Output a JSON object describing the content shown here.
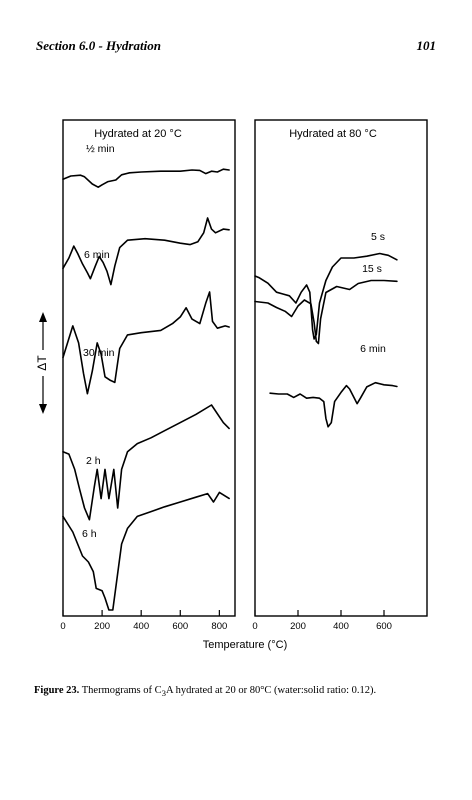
{
  "header": {
    "section": "Section 6.0 - Hydration",
    "page_number": "101"
  },
  "caption": {
    "label": "Figure 23.",
    "text_pre": " Thermograms of C",
    "subscript": "3",
    "text_post": "A hydrated at 20 or 80°C (water:solid ratio: 0.12)."
  },
  "chart_data": [
    {
      "type": "line",
      "title": "Hydrated at 20 °C",
      "xlabel": "Temperature (°C)",
      "ylabel": "ΔT",
      "xlim": [
        0,
        880
      ],
      "xticks": [
        0,
        200,
        400,
        600,
        800
      ],
      "grid": false,
      "series": [
        {
          "name": "½ min",
          "points": [
            [
              0,
              0.32
            ],
            [
              40,
              0.4
            ],
            [
              90,
              0.42
            ],
            [
              110,
              0.38
            ],
            [
              150,
              0.2
            ],
            [
              180,
              0.12
            ],
            [
              200,
              0.18
            ],
            [
              230,
              0.26
            ],
            [
              270,
              0.3
            ],
            [
              300,
              0.43
            ],
            [
              340,
              0.48
            ],
            [
              400,
              0.5
            ],
            [
              500,
              0.52
            ],
            [
              600,
              0.52
            ],
            [
              660,
              0.55
            ],
            [
              700,
              0.54
            ],
            [
              730,
              0.46
            ],
            [
              760,
              0.52
            ],
            [
              790,
              0.5
            ],
            [
              820,
              0.57
            ],
            [
              850,
              0.55
            ]
          ]
        },
        {
          "name": "6 min",
          "points": [
            [
              0,
              0.32
            ],
            [
              30,
              0.46
            ],
            [
              55,
              0.62
            ],
            [
              75,
              0.52
            ],
            [
              100,
              0.38
            ],
            [
              125,
              0.26
            ],
            [
              140,
              0.18
            ],
            [
              165,
              0.35
            ],
            [
              185,
              0.48
            ],
            [
              205,
              0.4
            ],
            [
              225,
              0.28
            ],
            [
              245,
              0.1
            ],
            [
              265,
              0.35
            ],
            [
              290,
              0.6
            ],
            [
              330,
              0.7
            ],
            [
              420,
              0.72
            ],
            [
              520,
              0.7
            ],
            [
              600,
              0.66
            ],
            [
              650,
              0.64
            ],
            [
              690,
              0.68
            ],
            [
              720,
              0.8
            ],
            [
              740,
              1.0
            ],
            [
              760,
              0.85
            ],
            [
              780,
              0.8
            ],
            [
              820,
              0.85
            ],
            [
              850,
              0.84
            ]
          ]
        },
        {
          "name": "30 min",
          "points": [
            [
              0,
              0.42
            ],
            [
              50,
              0.7
            ],
            [
              80,
              0.55
            ],
            [
              105,
              0.28
            ],
            [
              125,
              0.1
            ],
            [
              150,
              0.3
            ],
            [
              175,
              0.55
            ],
            [
              195,
              0.45
            ],
            [
              215,
              0.25
            ],
            [
              240,
              0.22
            ],
            [
              265,
              0.2
            ],
            [
              290,
              0.5
            ],
            [
              330,
              0.62
            ],
            [
              400,
              0.64
            ],
            [
              500,
              0.66
            ],
            [
              560,
              0.72
            ],
            [
              600,
              0.78
            ],
            [
              630,
              0.86
            ],
            [
              660,
              0.76
            ],
            [
              700,
              0.72
            ],
            [
              730,
              0.9
            ],
            [
              750,
              1.0
            ],
            [
              765,
              0.74
            ],
            [
              790,
              0.68
            ],
            [
              830,
              0.7
            ],
            [
              850,
              0.69
            ]
          ]
        },
        {
          "name": "2 h",
          "points": [
            [
              0,
              0.6
            ],
            [
              30,
              0.58
            ],
            [
              60,
              0.45
            ],
            [
              85,
              0.28
            ],
            [
              110,
              0.12
            ],
            [
              135,
              0.02
            ],
            [
              160,
              0.3
            ],
            [
              175,
              0.45
            ],
            [
              195,
              0.2
            ],
            [
              215,
              0.45
            ],
            [
              235,
              0.2
            ],
            [
              260,
              0.45
            ],
            [
              280,
              0.12
            ],
            [
              300,
              0.45
            ],
            [
              330,
              0.6
            ],
            [
              380,
              0.67
            ],
            [
              450,
              0.72
            ],
            [
              520,
              0.78
            ],
            [
              600,
              0.85
            ],
            [
              680,
              0.92
            ],
            [
              760,
              1.0
            ],
            [
              820,
              0.85
            ],
            [
              850,
              0.8
            ]
          ]
        },
        {
          "name": "6 h",
          "points": [
            [
              0,
              0.78
            ],
            [
              50,
              0.65
            ],
            [
              100,
              0.45
            ],
            [
              130,
              0.4
            ],
            [
              155,
              0.32
            ],
            [
              170,
              0.18
            ],
            [
              200,
              0.16
            ],
            [
              215,
              0.1
            ],
            [
              235,
              0.0
            ],
            [
              255,
              0.0
            ],
            [
              300,
              0.55
            ],
            [
              330,
              0.68
            ],
            [
              380,
              0.78
            ],
            [
              450,
              0.82
            ],
            [
              520,
              0.86
            ],
            [
              600,
              0.9
            ],
            [
              680,
              0.94
            ],
            [
              740,
              0.97
            ],
            [
              770,
              0.9
            ],
            [
              800,
              0.98
            ],
            [
              850,
              0.93
            ]
          ]
        }
      ]
    },
    {
      "type": "line",
      "title": "Hydrated at 80 °C",
      "xlabel": "Temperature (°C)",
      "xlim": [
        0,
        800
      ],
      "xticks": [
        0,
        200,
        400,
        600
      ],
      "grid": false,
      "series": [
        {
          "name": "5 s",
          "points": [
            [
              0,
              0.8
            ],
            [
              20,
              0.78
            ],
            [
              60,
              0.72
            ],
            [
              100,
              0.62
            ],
            [
              130,
              0.6
            ],
            [
              160,
              0.58
            ],
            [
              190,
              0.5
            ],
            [
              215,
              0.62
            ],
            [
              240,
              0.7
            ],
            [
              255,
              0.62
            ],
            [
              262,
              0.4
            ],
            [
              268,
              0.2
            ],
            [
              275,
              0.1
            ],
            [
              285,
              0.15
            ],
            [
              300,
              0.5
            ],
            [
              330,
              0.75
            ],
            [
              360,
              0.9
            ],
            [
              400,
              1.0
            ],
            [
              460,
              1.0
            ],
            [
              520,
              1.02
            ],
            [
              580,
              1.05
            ],
            [
              620,
              1.03
            ],
            [
              660,
              0.98
            ]
          ]
        },
        {
          "name": "15 s",
          "points": [
            [
              0,
              0.58
            ],
            [
              60,
              0.56
            ],
            [
              100,
              0.5
            ],
            [
              140,
              0.45
            ],
            [
              170,
              0.38
            ],
            [
              200,
              0.52
            ],
            [
              230,
              0.6
            ],
            [
              260,
              0.55
            ],
            [
              275,
              0.3
            ],
            [
              285,
              0.05
            ],
            [
              295,
              0.02
            ],
            [
              305,
              0.35
            ],
            [
              330,
              0.7
            ],
            [
              380,
              0.78
            ],
            [
              440,
              0.74
            ],
            [
              480,
              0.82
            ],
            [
              540,
              0.86
            ],
            [
              600,
              0.86
            ],
            [
              660,
              0.85
            ]
          ]
        },
        {
          "name": "6 min",
          "points": [
            [
              70,
              0.4
            ],
            [
              110,
              0.38
            ],
            [
              150,
              0.38
            ],
            [
              180,
              0.3
            ],
            [
              210,
              0.38
            ],
            [
              240,
              0.28
            ],
            [
              270,
              0.3
            ],
            [
              300,
              0.28
            ],
            [
              320,
              0.2
            ],
            [
              330,
              -0.2
            ],
            [
              340,
              -0.4
            ],
            [
              355,
              -0.3
            ],
            [
              370,
              0.2
            ],
            [
              400,
              0.42
            ],
            [
              425,
              0.58
            ],
            [
              440,
              0.5
            ],
            [
              460,
              0.3
            ],
            [
              475,
              0.15
            ],
            [
              490,
              0.28
            ],
            [
              520,
              0.55
            ],
            [
              560,
              0.65
            ],
            [
              600,
              0.6
            ],
            [
              640,
              0.58
            ],
            [
              660,
              0.56
            ]
          ]
        }
      ]
    }
  ]
}
